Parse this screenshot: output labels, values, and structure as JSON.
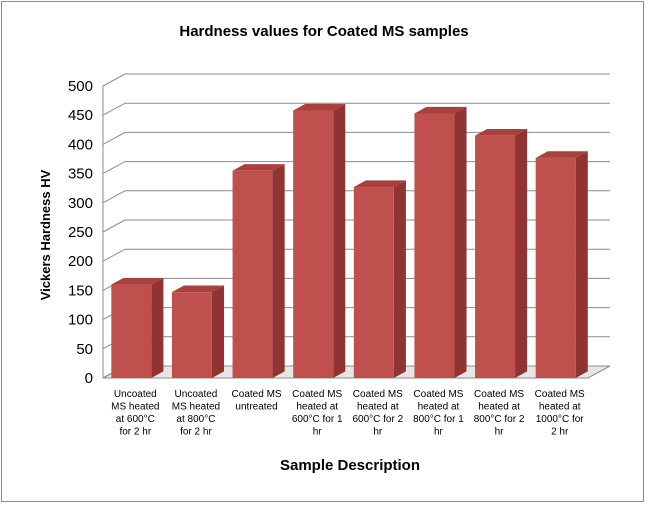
{
  "chart_data": {
    "type": "bar",
    "title": "Hardness values for Coated MS samples",
    "xlabel": "Sample Description",
    "ylabel": "Vickers Hardness HV",
    "ylim": [
      0,
      500
    ],
    "yticks": [
      0,
      50,
      100,
      150,
      200,
      250,
      300,
      350,
      400,
      450,
      500
    ],
    "grid": true,
    "legend": "none",
    "bar_color": "#c0504d",
    "categories": [
      [
        "Uncoated",
        "MS heated",
        "at 600°C",
        "for 2 hr"
      ],
      [
        "Uncoated",
        "MS heated",
        "at 800°C",
        "for 2 hr"
      ],
      [
        "Coated MS",
        "untreated"
      ],
      [
        "Coated MS",
        "heated at",
        "600°C for 1",
        "hr"
      ],
      [
        "Coated MS",
        "heated at",
        "600°C for 2",
        "hr"
      ],
      [
        "Coated MS",
        "heated at",
        "800°C for 1",
        "hr"
      ],
      [
        "Coated MS",
        "heated at",
        "800°C for 2",
        "hr"
      ],
      [
        "Coated MS",
        "heated at",
        "1000°C for",
        "2 hr"
      ]
    ],
    "values": [
      160,
      147,
      355,
      458,
      327,
      453,
      415,
      377
    ]
  }
}
